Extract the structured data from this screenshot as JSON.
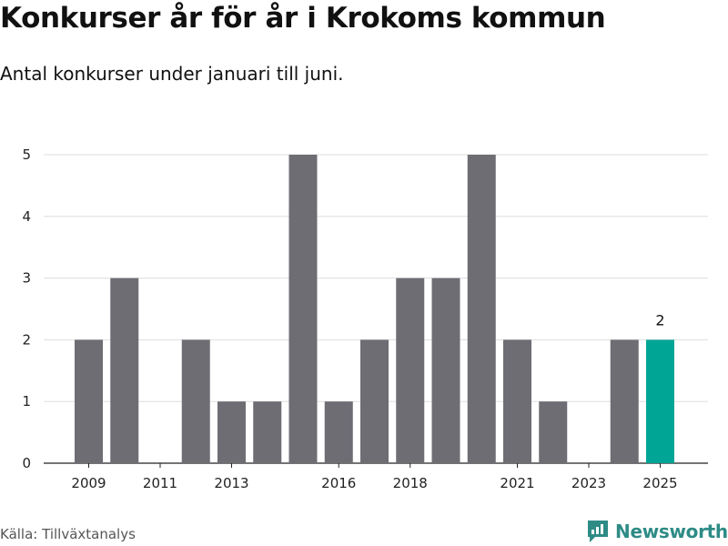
{
  "header": {
    "title": "Konkurser år för år i Krokoms kommun",
    "subtitle": "Antal konkurser under januari till juni."
  },
  "footer": {
    "source": "Källa: Tillväxtanalys",
    "brand": "Newsworthy",
    "brand_icon": "newsworthy-logo-icon"
  },
  "colors": {
    "bar": "#6e6d74",
    "highlight": "#00a596",
    "grid": "#dddddd",
    "brand": "#2e8b86"
  },
  "chart_data": {
    "type": "bar",
    "x": [
      2009,
      2010,
      2011,
      2012,
      2013,
      2014,
      2015,
      2016,
      2017,
      2018,
      2019,
      2020,
      2021,
      2022,
      2023,
      2024,
      2025
    ],
    "values": [
      2,
      3,
      0,
      2,
      1,
      1,
      5,
      1,
      2,
      3,
      3,
      5,
      2,
      1,
      0,
      2,
      2
    ],
    "x_tick_labels": [
      "2009",
      "2011",
      "2013",
      "2016",
      "2018",
      "2021",
      "2023",
      "2025"
    ],
    "y_ticks": [
      0,
      1,
      2,
      3,
      4,
      5
    ],
    "ylim": [
      0,
      5
    ],
    "highlight_x": 2025,
    "data_labels": [
      {
        "x": 2025,
        "text": "2"
      }
    ],
    "grid": true
  }
}
